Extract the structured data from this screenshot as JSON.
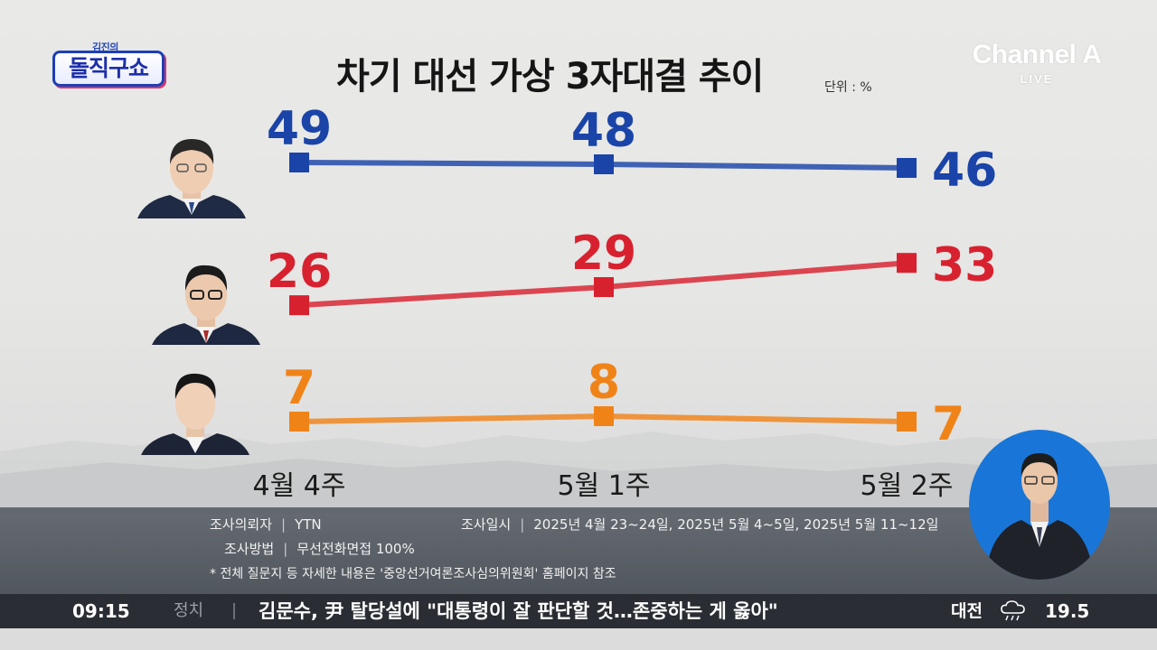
{
  "show_logo": {
    "sub": "김진의",
    "main": "돌직구쇼"
  },
  "channel_logo": {
    "name": "Channel A",
    "live": "LIVE"
  },
  "colors": {
    "series_blue": "#1a44a8",
    "series_red": "#d8212f",
    "series_orange": "#f08318",
    "anchor_background": "#1976d8",
    "ticker_background": "#2a2d33"
  },
  "chart_data": {
    "type": "line",
    "title": "차기 대선 가상 3자대결 추이",
    "unit": "단위 : %",
    "categories": [
      "4월 4주",
      "5월 1주",
      "5월 2주"
    ],
    "ylim": [
      0,
      55
    ],
    "grid": false,
    "legend": "candidate portraits at left of each line",
    "series": [
      {
        "color": "#1a44a8",
        "values": [
          49,
          48,
          46
        ],
        "labels": [
          "49",
          "48",
          "46"
        ]
      },
      {
        "color": "#d8212f",
        "values": [
          26,
          29,
          33
        ],
        "labels": [
          "26",
          "29",
          "33"
        ]
      },
      {
        "color": "#f08318",
        "values": [
          7,
          8,
          7
        ],
        "labels": [
          "7",
          "8",
          "7"
        ]
      }
    ]
  },
  "survey_info": {
    "client_label": "조사의뢰자",
    "client_value": "YTN",
    "method_label": "조사방법",
    "method_value": "무선전화면접 100%",
    "date_label": "조사일시",
    "date_value": "2025년 4월 23~24일, 2025년 5월 4~5일, 2025년 5월 11~12일",
    "note": "* 전체 질문지 등 자세한 내용은 '중앙선거여론조사심의위원회' 홈페이지 참조",
    "separator": "|"
  },
  "ticker": {
    "time": "09:15",
    "category": "정치",
    "headline": "김문수, 尹 탈당설에 \"대통령이 잘 판단할 것…존중하는 게 옳아\"",
    "city": "대전",
    "weather_icon": "rain-cloud-icon",
    "temperature": "19.5"
  }
}
